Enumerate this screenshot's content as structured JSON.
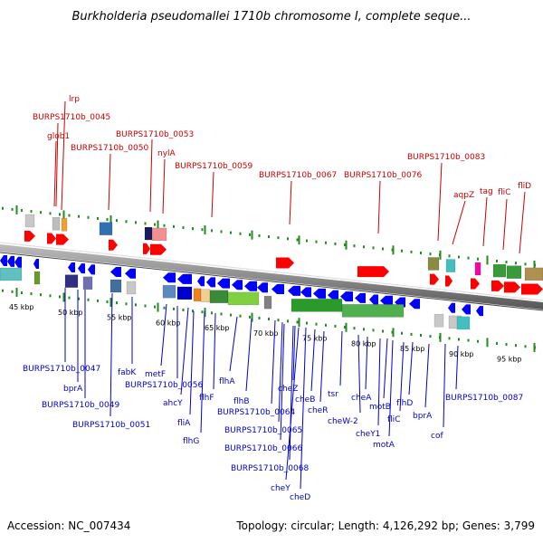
{
  "title": "Burkholderia pseudomallei 1710b chromosome I, complete seque...",
  "footer": {
    "accession": "Accession: NC_007434",
    "topology": "Topology: circular; Length: 4,126,292 bp; Genes: 3,799"
  },
  "kbp_ticks": [
    "45 kbp",
    "50 kbp",
    "55 kbp",
    "60 kbp",
    "65 kbp",
    "70 kbp",
    "75 kbp",
    "80 kbp",
    "85 kbp",
    "90 kbp",
    "95 kbp"
  ],
  "top_labels": [
    "lrp",
    "BURPS1710b_0045",
    "glob1",
    "BURPS1710b_0050",
    "BURPS1710b_0053",
    "nylA",
    "BURPS1710b_0059",
    "BURPS1710b_0067",
    "BURPS1710b_0076",
    "BURPS1710b_0083",
    "aqpZ",
    "tag",
    "fliC",
    "fliD"
  ],
  "bottom_labels": [
    "BURPS1710b_0047",
    "bprA",
    "BURPS1710b_0049",
    "BURPS1710b_0051",
    "fabK",
    "metF",
    "BURPS1710b_0056",
    "ahcY",
    "fliA",
    "flhG",
    "flhF",
    "flhA",
    "flhB",
    "BURPS1710b_0064",
    "BURPS1710b_0065",
    "BURPS1710b_0066",
    "BURPS1710b_0068",
    "cheY",
    "cheD",
    "cheZ",
    "cheB",
    "cheR",
    "tsr",
    "cheW-2",
    "cheA",
    "cheY1",
    "motB",
    "motA",
    "fliC",
    "flhD",
    "bprA",
    "cof",
    "BURPS1710b_0087"
  ],
  "colors": {
    "forward_gene": "#ff0000",
    "reverse_gene": "#0000ff",
    "forward_label": "#cc0000",
    "reverse_label": "#0000cc",
    "backbone": "#8c8c8c",
    "tick": "#228b22"
  }
}
